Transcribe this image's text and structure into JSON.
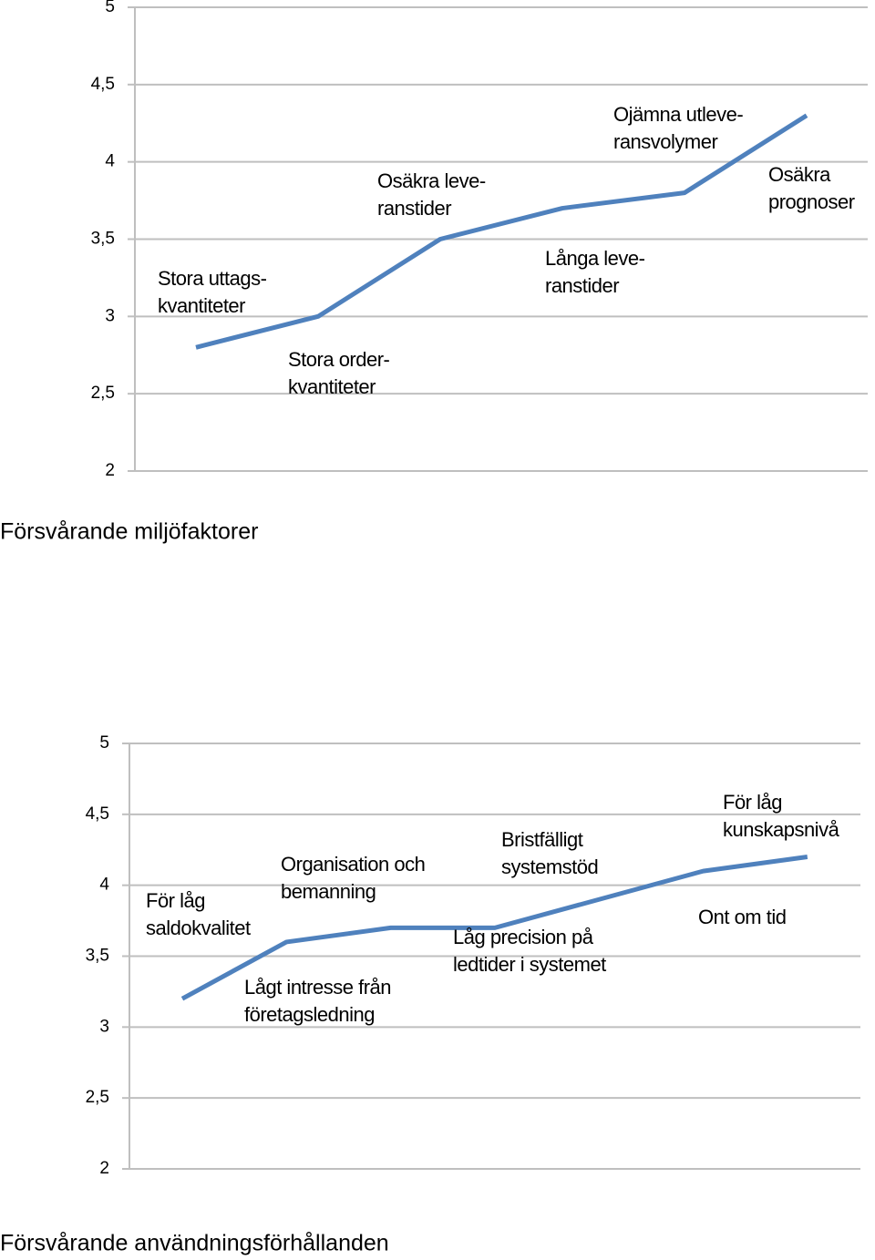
{
  "chart_data": [
    {
      "type": "line",
      "title": "Försvårande miljöfaktorer",
      "categories": [
        [
          "Stora uttags-",
          "kvantiteter"
        ],
        [
          "Stora order-",
          "kvantiteter"
        ],
        [
          "Osäkra leve-",
          "ranstider"
        ],
        [
          "Långa leve-",
          "ranstider"
        ],
        [
          "Ojämna utleve-",
          "ransvolymer"
        ],
        [
          "Osäkra",
          "prognoser"
        ]
      ],
      "values": [
        2.8,
        3.0,
        3.5,
        3.7,
        3.8,
        4.3
      ],
      "color": "#4f81bd",
      "ylim": [
        2,
        5
      ],
      "yticks": [
        2,
        {
          "value": 2.5,
          "label": "2,5"
        },
        3,
        {
          "value": 3.5,
          "label": "3,5"
        },
        4,
        {
          "value": 4.5,
          "label": "4,5"
        },
        5
      ],
      "grid": true
    },
    {
      "type": "line",
      "title": "Försvårande användningsförhållanden",
      "categories": [
        [
          "För låg",
          "saldokvalitet"
        ],
        [
          "Lågt intresse från",
          "företagsledning"
        ],
        [
          "Organisation och",
          "bemanning"
        ],
        [
          "Låg precision på",
          "ledtider i systemet"
        ],
        [
          "Bristfälligt",
          "systemstöd"
        ],
        [
          "Ont om tid"
        ],
        [
          "För låg",
          "kunskapsnivå"
        ]
      ],
      "values": [
        3.2,
        3.6,
        3.7,
        3.7,
        3.9,
        4.1,
        4.2
      ],
      "color": "#4f81bd",
      "ylim": [
        2,
        5
      ],
      "yticks": [
        2,
        {
          "value": 2.5,
          "label": "2,5"
        },
        3,
        {
          "value": 3.5,
          "label": "3,5"
        },
        4,
        {
          "value": 4.5,
          "label": "4,5"
        },
        5
      ],
      "grid": true
    }
  ]
}
